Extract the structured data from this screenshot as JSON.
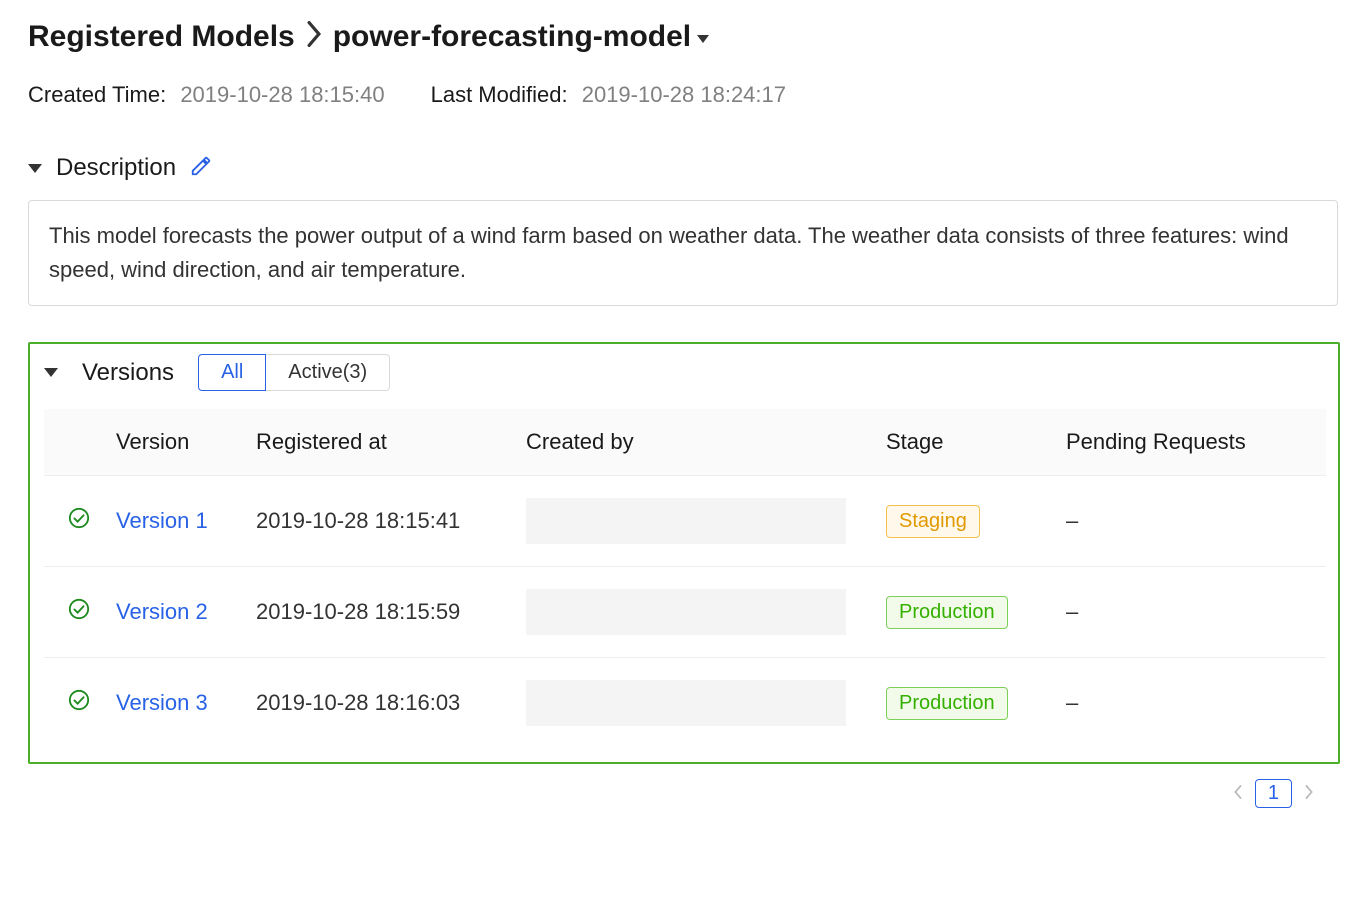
{
  "breadcrumb": {
    "root": "Registered Models",
    "model_name": "power-forecasting-model"
  },
  "meta": {
    "created_label": "Created Time",
    "created_value": "2019-10-28 18:15:40",
    "modified_label": "Last Modified",
    "modified_value": "2019-10-28 18:24:17"
  },
  "description": {
    "title": "Description",
    "text": "This model forecasts the power output of a wind farm based on weather data. The weather data consists of three features: wind speed, wind direction, and air temperature."
  },
  "versions": {
    "title": "Versions",
    "tabs": {
      "all": "All",
      "active": "Active(3)"
    },
    "columns": {
      "version": "Version",
      "registered": "Registered at",
      "createdby": "Created by",
      "stage": "Stage",
      "pending": "Pending Requests"
    },
    "rows": [
      {
        "version": "Version 1",
        "registered": "2019-10-28 18:15:41",
        "stage": "Staging",
        "pending": "–"
      },
      {
        "version": "Version 2",
        "registered": "2019-10-28 18:15:59",
        "stage": "Production",
        "pending": "–"
      },
      {
        "version": "Version 3",
        "registered": "2019-10-28 18:16:03",
        "stage": "Production",
        "pending": "–"
      }
    ]
  },
  "pagination": {
    "current": "1"
  },
  "colors": {
    "link": "#2962e6",
    "highlight_border": "#4caf2a",
    "staging_text": "#e09a00",
    "production_text": "#34b000"
  }
}
